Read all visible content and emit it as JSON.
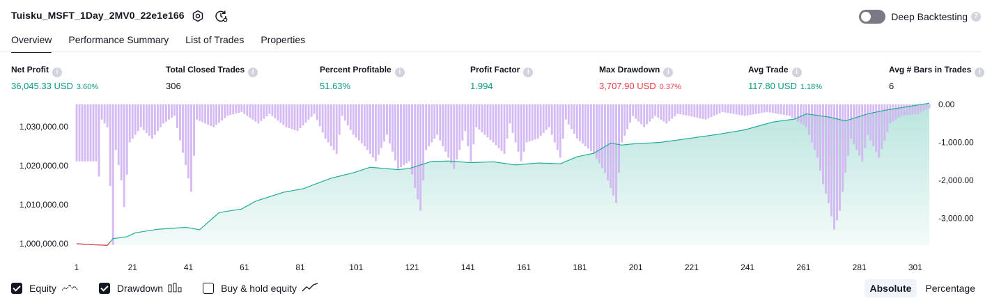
{
  "header": {
    "title": "Tuisku_MSFT_1Day_2MV0_22e1e166",
    "settings_icon": "gear-icon",
    "replay_icon": "refresh-clock-icon",
    "deep_backtesting_label": "Deep Backtesting",
    "deep_backtesting_on": false
  },
  "tabs": [
    {
      "label": "Overview",
      "active": true
    },
    {
      "label": "Performance Summary",
      "active": false
    },
    {
      "label": "List of Trades",
      "active": false
    },
    {
      "label": "Properties",
      "active": false
    }
  ],
  "metrics": [
    {
      "label": "Net Profit",
      "value": "36,045.33 USD",
      "pct": "3.60%",
      "tone": "green"
    },
    {
      "label": "Total Closed Trades",
      "value": "306",
      "pct": "",
      "tone": "plain"
    },
    {
      "label": "Percent Profitable",
      "value": "51.63%",
      "pct": "",
      "tone": "green"
    },
    {
      "label": "Profit Factor",
      "value": "1.994",
      "pct": "",
      "tone": "green"
    },
    {
      "label": "Max Drawdown",
      "value": "3,707.90 USD",
      "pct": "0.37%",
      "tone": "red"
    },
    {
      "label": "Avg Trade",
      "value": "117.80 USD",
      "pct": "1.18%",
      "tone": "green"
    },
    {
      "label": "Avg # Bars in Trades",
      "value": "6",
      "pct": "",
      "tone": "plain"
    }
  ],
  "chart_data": {
    "type": "area",
    "x_ticks": [
      "1",
      "21",
      "41",
      "61",
      "81",
      "101",
      "121",
      "141",
      "161",
      "181",
      "201",
      "221",
      "241",
      "261",
      "281",
      "301"
    ],
    "y_left_ticks": [
      "1,030,000.00",
      "1,020,000.00",
      "1,010,000.00",
      "1,000,000.00"
    ],
    "y_right_ticks": [
      "0.00",
      "-1,000.00",
      "-2,000.00",
      "-3,000.00"
    ],
    "equity_color": "#22ab94",
    "drawdown_color": "#d1b3f2",
    "equity_keypoints": [
      [
        1,
        1000000
      ],
      [
        8,
        999700
      ],
      [
        12,
        999600
      ],
      [
        14,
        1001300
      ],
      [
        19,
        1001800
      ],
      [
        22,
        1002800
      ],
      [
        30,
        1003700
      ],
      [
        40,
        1004200
      ],
      [
        45,
        1003600
      ],
      [
        52,
        1008000
      ],
      [
        60,
        1008900
      ],
      [
        65,
        1010900
      ],
      [
        75,
        1013200
      ],
      [
        82,
        1014100
      ],
      [
        92,
        1016800
      ],
      [
        100,
        1018200
      ],
      [
        106,
        1019600
      ],
      [
        116,
        1019000
      ],
      [
        120,
        1019300
      ],
      [
        128,
        1021100
      ],
      [
        134,
        1021200
      ],
      [
        142,
        1020800
      ],
      [
        150,
        1021000
      ],
      [
        158,
        1020200
      ],
      [
        166,
        1020700
      ],
      [
        174,
        1020500
      ],
      [
        180,
        1022300
      ],
      [
        186,
        1023200
      ],
      [
        192,
        1025800
      ],
      [
        196,
        1025300
      ],
      [
        200,
        1025600
      ],
      [
        210,
        1026000
      ],
      [
        220,
        1027000
      ],
      [
        230,
        1028000
      ],
      [
        240,
        1029200
      ],
      [
        250,
        1031200
      ],
      [
        258,
        1032000
      ],
      [
        262,
        1033300
      ],
      [
        270,
        1032500
      ],
      [
        276,
        1031500
      ],
      [
        284,
        1033300
      ],
      [
        290,
        1034200
      ],
      [
        296,
        1034900
      ],
      [
        306,
        1036045
      ]
    ],
    "drawdown_keypoints": [
      [
        1,
        -1500
      ],
      [
        4,
        -1500
      ],
      [
        8,
        -1500
      ],
      [
        9,
        -1900
      ],
      [
        10,
        -400
      ],
      [
        12,
        -600
      ],
      [
        14,
        -3700
      ],
      [
        15,
        -1200
      ],
      [
        17,
        -2000
      ],
      [
        18,
        -2700
      ],
      [
        20,
        -1000
      ],
      [
        24,
        -600
      ],
      [
        28,
        -900
      ],
      [
        32,
        -500
      ],
      [
        36,
        -300
      ],
      [
        40,
        -1600
      ],
      [
        42,
        -2300
      ],
      [
        44,
        -400
      ],
      [
        50,
        -600
      ],
      [
        55,
        -300
      ],
      [
        60,
        -200
      ],
      [
        66,
        -500
      ],
      [
        70,
        -250
      ],
      [
        76,
        -600
      ],
      [
        80,
        -700
      ],
      [
        86,
        -250
      ],
      [
        90,
        -900
      ],
      [
        94,
        -1300
      ],
      [
        96,
        -300
      ],
      [
        100,
        -800
      ],
      [
        104,
        -1100
      ],
      [
        108,
        -1500
      ],
      [
        112,
        -800
      ],
      [
        116,
        -1700
      ],
      [
        120,
        -1500
      ],
      [
        122,
        -2200
      ],
      [
        124,
        -2800
      ],
      [
        126,
        -1200
      ],
      [
        130,
        -800
      ],
      [
        136,
        -1700
      ],
      [
        140,
        -700
      ],
      [
        142,
        -1500
      ],
      [
        144,
        -600
      ],
      [
        150,
        -1000
      ],
      [
        154,
        -1300
      ],
      [
        156,
        -500
      ],
      [
        160,
        -1500
      ],
      [
        162,
        -1000
      ],
      [
        166,
        -900
      ],
      [
        170,
        -600
      ],
      [
        174,
        -1400
      ],
      [
        176,
        -400
      ],
      [
        180,
        -900
      ],
      [
        186,
        -1300
      ],
      [
        190,
        -1800
      ],
      [
        194,
        -2600
      ],
      [
        196,
        -1000
      ],
      [
        200,
        -300
      ],
      [
        204,
        -600
      ],
      [
        208,
        -300
      ],
      [
        212,
        -500
      ],
      [
        216,
        -250
      ],
      [
        220,
        -300
      ],
      [
        226,
        -400
      ],
      [
        232,
        -200
      ],
      [
        240,
        -300
      ],
      [
        248,
        -200
      ],
      [
        256,
        -300
      ],
      [
        262,
        -600
      ],
      [
        266,
        -1400
      ],
      [
        268,
        -2100
      ],
      [
        270,
        -2600
      ],
      [
        272,
        -3300
      ],
      [
        274,
        -2800
      ],
      [
        276,
        -1800
      ],
      [
        278,
        -900
      ],
      [
        282,
        -1500
      ],
      [
        284,
        -800
      ],
      [
        288,
        -1400
      ],
      [
        292,
        -500
      ],
      [
        296,
        -300
      ],
      [
        302,
        -250
      ],
      [
        306,
        -100
      ]
    ],
    "legend": [
      {
        "label": "Equity",
        "checked": true,
        "icon": "equity-line-icon"
      },
      {
        "label": "Drawdown",
        "checked": true,
        "icon": "drawdown-bars-icon"
      },
      {
        "label": "Buy & hold equity",
        "checked": false,
        "icon": "buy-hold-line-icon"
      }
    ],
    "scale_modes": [
      {
        "label": "Absolute",
        "selected": true
      },
      {
        "label": "Percentage",
        "selected": false
      }
    ]
  }
}
